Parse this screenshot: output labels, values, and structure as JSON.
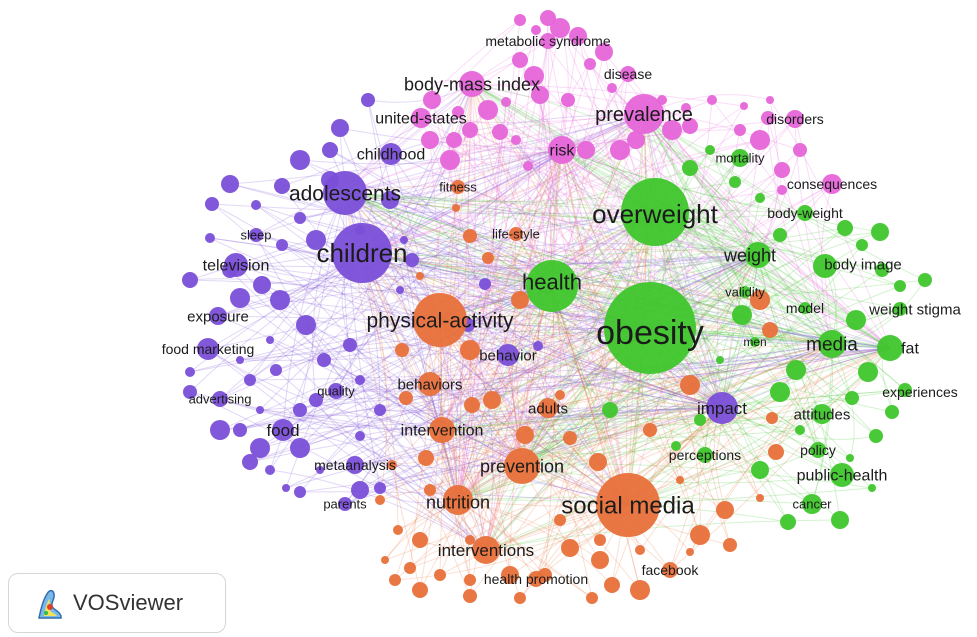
{
  "map": {
    "clusters": [
      {
        "id": "orange",
        "color": "#e8703a"
      },
      {
        "id": "green",
        "color": "#3fc62c"
      },
      {
        "id": "purple",
        "color": "#7a4fd8"
      },
      {
        "id": "pink",
        "color": "#e665d9"
      }
    ],
    "keywords": [
      {
        "label": "obesity",
        "cluster": "green"
      },
      {
        "label": "overweight",
        "cluster": "green"
      },
      {
        "label": "health",
        "cluster": "green"
      },
      {
        "label": "weight",
        "cluster": "green"
      },
      {
        "label": "body image",
        "cluster": "green"
      },
      {
        "label": "body-weight",
        "cluster": "green"
      },
      {
        "label": "validity",
        "cluster": "green"
      },
      {
        "label": "model",
        "cluster": "green"
      },
      {
        "label": "weight stigma",
        "cluster": "green"
      },
      {
        "label": "media",
        "cluster": "green"
      },
      {
        "label": "fat",
        "cluster": "green"
      },
      {
        "label": "men",
        "cluster": "green"
      },
      {
        "label": "experiences",
        "cluster": "green"
      },
      {
        "label": "attitudes",
        "cluster": "green"
      },
      {
        "label": "policy",
        "cluster": "green"
      },
      {
        "label": "public-health",
        "cluster": "green"
      },
      {
        "label": "cancer",
        "cluster": "green"
      },
      {
        "label": "perceptions",
        "cluster": "green"
      },
      {
        "label": "mortality",
        "cluster": "green"
      },
      {
        "label": "social media",
        "cluster": "orange"
      },
      {
        "label": "physical-activity",
        "cluster": "orange"
      },
      {
        "label": "prevention",
        "cluster": "orange"
      },
      {
        "label": "nutrition",
        "cluster": "orange"
      },
      {
        "label": "interventions",
        "cluster": "orange"
      },
      {
        "label": "intervention",
        "cluster": "orange"
      },
      {
        "label": "adults",
        "cluster": "orange"
      },
      {
        "label": "behaviors",
        "cluster": "orange"
      },
      {
        "label": "health promotion",
        "cluster": "orange"
      },
      {
        "label": "facebook",
        "cluster": "orange"
      },
      {
        "label": "life-style",
        "cluster": "orange"
      },
      {
        "label": "fitness",
        "cluster": "orange"
      },
      {
        "label": "children",
        "cluster": "purple"
      },
      {
        "label": "adolescents",
        "cluster": "purple"
      },
      {
        "label": "childhood",
        "cluster": "purple"
      },
      {
        "label": "television",
        "cluster": "purple"
      },
      {
        "label": "sleep",
        "cluster": "purple"
      },
      {
        "label": "exposure",
        "cluster": "purple"
      },
      {
        "label": "food marketing",
        "cluster": "purple"
      },
      {
        "label": "advertising",
        "cluster": "purple"
      },
      {
        "label": "quality",
        "cluster": "purple"
      },
      {
        "label": "food",
        "cluster": "purple"
      },
      {
        "label": "metaanalysis",
        "cluster": "purple"
      },
      {
        "label": "parents",
        "cluster": "purple"
      },
      {
        "label": "behavior",
        "cluster": "purple"
      },
      {
        "label": "impact",
        "cluster": "purple"
      },
      {
        "label": "metabolic syndrome",
        "cluster": "pink"
      },
      {
        "label": "body-mass index",
        "cluster": "pink"
      },
      {
        "label": "disease",
        "cluster": "pink"
      },
      {
        "label": "prevalence",
        "cluster": "pink"
      },
      {
        "label": "disorders",
        "cluster": "pink"
      },
      {
        "label": "united-states",
        "cluster": "pink"
      },
      {
        "label": "risk",
        "cluster": "pink"
      },
      {
        "label": "consequences",
        "cluster": "pink"
      }
    ]
  },
  "logo": {
    "text": "VOSviewer"
  }
}
